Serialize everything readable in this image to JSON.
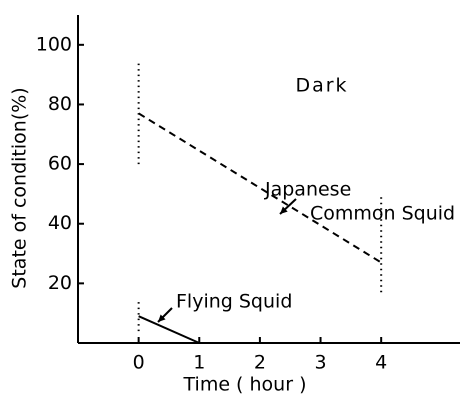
{
  "chart_data": {
    "type": "line",
    "annotations": [
      "Dark"
    ],
    "xlabel": "Time ( hour )",
    "ylabel": "State of condition(%)",
    "xlim": [
      -1,
      5.3
    ],
    "xticks": [
      0,
      1,
      2,
      3,
      4
    ],
    "ylim": [
      0,
      110
    ],
    "yticks": [
      20,
      40,
      60,
      80,
      100
    ],
    "series": [
      {
        "label": [
          "Japanese",
          "Common Squid"
        ],
        "color": "#000000",
        "dash": true,
        "x": [
          0,
          4
        ],
        "values": [
          77,
          27
        ],
        "low": [
          60,
          17
        ],
        "high": [
          95,
          49
        ]
      },
      {
        "label": [
          "Flying Squid"
        ],
        "color": "#000000",
        "dash": false,
        "x": [
          0,
          1
        ],
        "values": [
          9,
          0
        ],
        "low": [
          4,
          null
        ],
        "high": [
          15,
          null
        ]
      }
    ]
  }
}
